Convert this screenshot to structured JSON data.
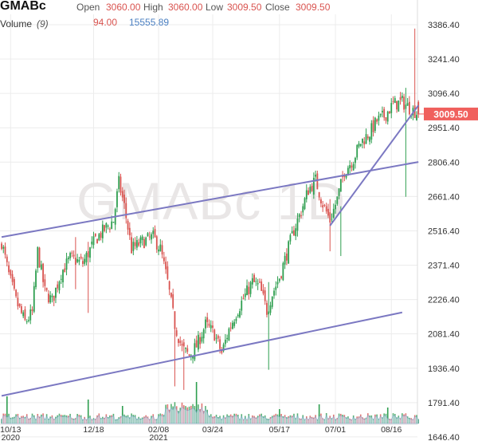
{
  "header": {
    "symbol": "GMABc",
    "open_label": "Open",
    "open_value": "3060.00",
    "high_label": "High",
    "high_value": "3060.00",
    "low_label": "Low",
    "low_value": "3009.50",
    "close_label": "Close",
    "close_value": "3009.50",
    "volume_label": "Volume",
    "volume_period": "(9)",
    "volume_value": "94.00",
    "volume_avg": "15555.89"
  },
  "watermark": "GMABc 1D",
  "last_price_tag": "3009.50",
  "colors": {
    "up": "#2e9e4f",
    "down": "#d9534f",
    "trendline": "#7b78c2",
    "volume_area": "#c9dcf2",
    "price_tag": "#f0605d"
  },
  "chart_data": {
    "type": "candlestick",
    "ylim": [
      1700,
      3430
    ],
    "yticks": [
      3386.4,
      3241.4,
      3096.4,
      2951.4,
      2806.4,
      2661.4,
      2516.4,
      2371.4,
      2226.4,
      2081.4,
      1936.4,
      1791.4,
      1646.4
    ],
    "ytick_labels": [
      "3386.40",
      "3241.40",
      "3096.40",
      "2951.40",
      "2806.40",
      "2661.40",
      "2516.40",
      "2371.40",
      "2226.40",
      "2081.40",
      "1936.40",
      "1791.40",
      "1646.40"
    ],
    "xticks": [
      {
        "label": "10/13",
        "sub": "2020",
        "idx": 5
      },
      {
        "label": "12/18",
        "sub": "",
        "idx": 51
      },
      {
        "label": "02/08",
        "sub": "2021",
        "idx": 87
      },
      {
        "label": "03/24",
        "sub": "",
        "idx": 117
      },
      {
        "label": "05/17",
        "sub": "",
        "idx": 154
      },
      {
        "label": "07/01",
        "sub": "",
        "idx": 185
      },
      {
        "label": "08/16",
        "sub": "",
        "idx": 216
      }
    ],
    "n_bars": 232,
    "anchors": [
      [
        0,
        2470
      ],
      [
        4,
        2330
      ],
      [
        8,
        2220
      ],
      [
        13,
        2130
      ],
      [
        17,
        2170
      ],
      [
        20,
        2430
      ],
      [
        24,
        2260
      ],
      [
        28,
        2220
      ],
      [
        33,
        2340
      ],
      [
        38,
        2400
      ],
      [
        45,
        2380
      ],
      [
        52,
        2480
      ],
      [
        58,
        2530
      ],
      [
        62,
        2560
      ],
      [
        65,
        2720
      ],
      [
        68,
        2620
      ],
      [
        72,
        2440
      ],
      [
        78,
        2470
      ],
      [
        84,
        2490
      ],
      [
        88,
        2440
      ],
      [
        92,
        2300
      ],
      [
        96,
        2120
      ],
      [
        100,
        2020
      ],
      [
        104,
        1990
      ],
      [
        108,
        2030
      ],
      [
        113,
        2120
      ],
      [
        118,
        2080
      ],
      [
        122,
        2000
      ],
      [
        126,
        2100
      ],
      [
        130,
        2170
      ],
      [
        134,
        2230
      ],
      [
        139,
        2300
      ],
      [
        143,
        2280
      ],
      [
        147,
        2180
      ],
      [
        150,
        2250
      ],
      [
        154,
        2320
      ],
      [
        158,
        2420
      ],
      [
        162,
        2520
      ],
      [
        166,
        2600
      ],
      [
        170,
        2690
      ],
      [
        174,
        2730
      ],
      [
        178,
        2630
      ],
      [
        182,
        2560
      ],
      [
        186,
        2650
      ],
      [
        190,
        2770
      ],
      [
        195,
        2820
      ],
      [
        199,
        2890
      ],
      [
        204,
        2930
      ],
      [
        208,
        2980
      ],
      [
        212,
        3000
      ],
      [
        217,
        3050
      ],
      [
        222,
        3060
      ],
      [
        227,
        3030
      ],
      [
        231,
        3010
      ]
    ],
    "last": {
      "open": 3060.0,
      "high": 3060.0,
      "low": 3009.5,
      "close": 3009.5,
      "volume": 94.0
    },
    "volume_avg": 15555.89,
    "trendlines": [
      {
        "from": [
          0,
          2490
        ],
        "to": [
          231,
          2807
        ]
      },
      {
        "from": [
          0,
          1820
        ],
        "to": [
          222,
          2172
        ]
      },
      {
        "from": [
          182,
          2538
        ],
        "to": [
          231,
          3046
        ]
      }
    ]
  }
}
